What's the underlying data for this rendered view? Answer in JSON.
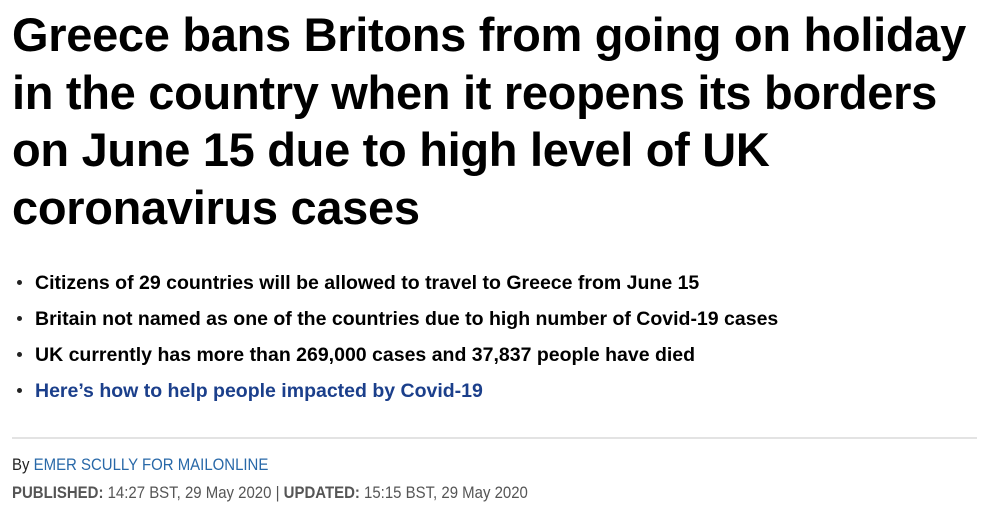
{
  "headline": "Greece bans Britons from going on holiday in the country when it reopens its borders on June 15 due to high level of UK coronavirus cases",
  "bullets": [
    "Citizens of 29 countries will be allowed to travel to Greece from June 15",
    "Britain not named as one of the countries due to high number of Covid-19 cases",
    "UK currently has more than 269,000 cases and 37,837 people have died"
  ],
  "related_link": "Here’s how to help people impacted by Covid-19",
  "byline": {
    "prefix": "By",
    "author": "EMER SCULLY FOR MAILONLINE"
  },
  "dates": {
    "published_label": "PUBLISHED:",
    "published": "14:27 BST, 29 May 2020",
    "separator": "|",
    "updated_label": "UPDATED:",
    "updated": "15:15 BST, 29 May 2020"
  },
  "colors": {
    "link": "#1b3f8b",
    "author": "#2868a8"
  }
}
